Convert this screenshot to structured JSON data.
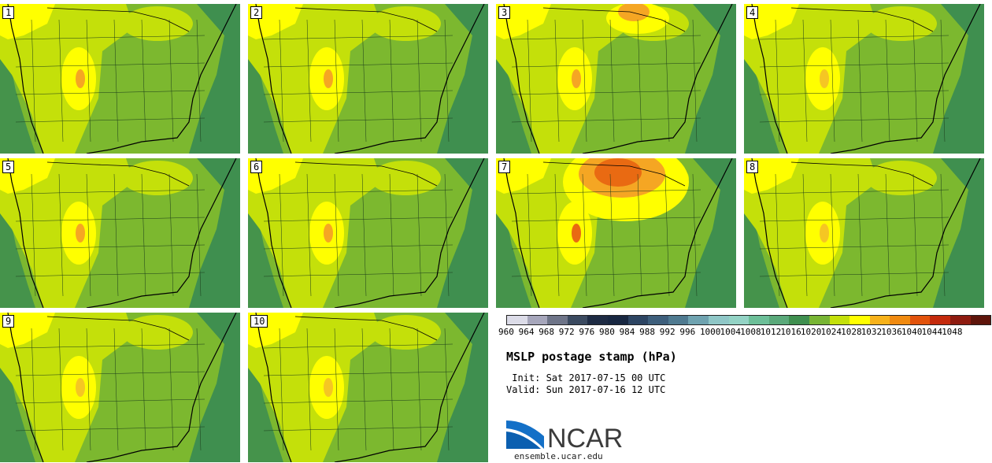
{
  "panels": [
    {
      "label": "1",
      "high": "#f5a623"
    },
    {
      "label": "2",
      "high": "#f5a623"
    },
    {
      "label": "3",
      "high": "#f5a623"
    },
    {
      "label": "4",
      "high": "#f5c623"
    },
    {
      "label": "5",
      "high": "#f5a623"
    },
    {
      "label": "6",
      "high": "#f5a623"
    },
    {
      "label": "7",
      "high": "#e96a12"
    },
    {
      "label": "8",
      "high": "#f5c623"
    },
    {
      "label": "9",
      "high": "#f5c623"
    },
    {
      "label": "10",
      "high": "#f5c623"
    }
  ],
  "colorbar": {
    "ticks": [
      "960",
      "964",
      "968",
      "972",
      "976",
      "980",
      "984",
      "988",
      "992",
      "996",
      "1000",
      "1004",
      "1008",
      "1012",
      "1016",
      "1020",
      "1024",
      "1028",
      "1032",
      "1036",
      "1040",
      "1044",
      "1048"
    ],
    "colors": [
      "#dcdce8",
      "#a6a6bb",
      "#6e7488",
      "#3b4a60",
      "#1e2b44",
      "#182741",
      "#2d4563",
      "#3e5f7c",
      "#4f7a90",
      "#6fa3b0",
      "#8fc7c7",
      "#93d3c5",
      "#6cbf98",
      "#5aa97a",
      "#3f8f4f",
      "#78b534",
      "#c4e00a",
      "#ffff00",
      "#f7b21a",
      "#f08a10",
      "#e2530c",
      "#c42a0c",
      "#8e1b10",
      "#5e150b"
    ]
  },
  "title": "MSLP postage stamp (hPa)",
  "init": " Init: Sat 2017-07-15 00 UTC",
  "valid": "Valid: Sun 2017-07-16 12 UTC",
  "logo_text": "NCAR",
  "site": "ensemble.ucar.edu",
  "palette": {
    "green_dark": "#3f8f4f",
    "green": "#7cb82f",
    "yellow_green": "#c4e00a",
    "yellow": "#ffff00",
    "orange": "#f5a623",
    "red_orange": "#e96a12"
  }
}
